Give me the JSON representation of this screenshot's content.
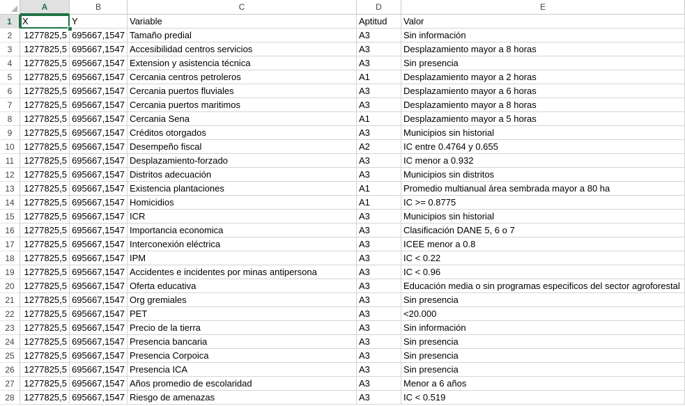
{
  "columns": [
    "A",
    "B",
    "C",
    "D",
    "E"
  ],
  "rows": [
    {
      "n": "1",
      "a": "X",
      "b": "Y",
      "c": "Variable",
      "d": "Aptitud",
      "e": "Valor"
    },
    {
      "n": "2",
      "a": "1277825,5",
      "b": "695667,1547",
      "c": "Tamaño predial",
      "d": "A3",
      "e": "Sin información"
    },
    {
      "n": "3",
      "a": "1277825,5",
      "b": "695667,1547",
      "c": "Accesibilidad centros servicios",
      "d": "A3",
      "e": "Desplazamiento mayor a 8 horas"
    },
    {
      "n": "4",
      "a": "1277825,5",
      "b": "695667,1547",
      "c": "Extension y asistencia técnica",
      "d": "A3",
      "e": "Sin presencia"
    },
    {
      "n": "5",
      "a": "1277825,5",
      "b": "695667,1547",
      "c": "Cercania centros petroleros",
      "d": "A1",
      "e": "Desplazamiento mayor a 2 horas"
    },
    {
      "n": "6",
      "a": "1277825,5",
      "b": "695667,1547",
      "c": "Cercania puertos fluviales",
      "d": "A3",
      "e": "Desplazamiento mayor a 6 horas"
    },
    {
      "n": "7",
      "a": "1277825,5",
      "b": "695667,1547",
      "c": "Cercania puertos maritimos",
      "d": "A3",
      "e": "Desplazamiento mayor a 8 horas"
    },
    {
      "n": "8",
      "a": "1277825,5",
      "b": "695667,1547",
      "c": "Cercania Sena",
      "d": "A1",
      "e": "Desplazamiento mayor a 5 horas"
    },
    {
      "n": "9",
      "a": "1277825,5",
      "b": "695667,1547",
      "c": "Créditos otorgados",
      "d": "A3",
      "e": "Municipios sin historial"
    },
    {
      "n": "10",
      "a": "1277825,5",
      "b": "695667,1547",
      "c": "Desempeño fiscal",
      "d": "A2",
      "e": "IC entre 0.4764 y 0.655"
    },
    {
      "n": "11",
      "a": "1277825,5",
      "b": "695667,1547",
      "c": "Desplazamiento-forzado",
      "d": "A3",
      "e": "IC menor a 0.932"
    },
    {
      "n": "12",
      "a": "1277825,5",
      "b": "695667,1547",
      "c": "Distritos adecuación",
      "d": "A3",
      "e": "Municipios sin distritos"
    },
    {
      "n": "13",
      "a": "1277825,5",
      "b": "695667,1547",
      "c": "Existencia plantaciones",
      "d": "A1",
      "e": "Promedio multianual área sembrada mayor a 80 ha"
    },
    {
      "n": "14",
      "a": "1277825,5",
      "b": "695667,1547",
      "c": "Homicidios",
      "d": "A1",
      "e": "IC >= 0.8775"
    },
    {
      "n": "15",
      "a": "1277825,5",
      "b": "695667,1547",
      "c": "ICR",
      "d": "A3",
      "e": "Municipios sin historial"
    },
    {
      "n": "16",
      "a": "1277825,5",
      "b": "695667,1547",
      "c": "Importancia economica",
      "d": "A3",
      "e": "Clasificación DANE 5, 6 o 7"
    },
    {
      "n": "17",
      "a": "1277825,5",
      "b": "695667,1547",
      "c": "Interconexión eléctrica",
      "d": "A3",
      "e": "ICEE menor a 0.8"
    },
    {
      "n": "18",
      "a": "1277825,5",
      "b": "695667,1547",
      "c": "IPM",
      "d": "A3",
      "e": "IC < 0.22"
    },
    {
      "n": "19",
      "a": "1277825,5",
      "b": "695667,1547",
      "c": "Accidentes e incidentes por minas antipersona",
      "d": "A3",
      "e": "IC < 0.96"
    },
    {
      "n": "20",
      "a": "1277825,5",
      "b": "695667,1547",
      "c": "Oferta educativa",
      "d": "A3",
      "e": "Educación media o sin programas especificos del sector agroforestal"
    },
    {
      "n": "21",
      "a": "1277825,5",
      "b": "695667,1547",
      "c": "Org gremiales",
      "d": "A3",
      "e": "Sin presencia"
    },
    {
      "n": "22",
      "a": "1277825,5",
      "b": "695667,1547",
      "c": "PET",
      "d": "A3",
      "e": "<20.000"
    },
    {
      "n": "23",
      "a": "1277825,5",
      "b": "695667,1547",
      "c": "Precio de la tierra",
      "d": "A3",
      "e": "Sin información"
    },
    {
      "n": "24",
      "a": "1277825,5",
      "b": "695667,1547",
      "c": "Presencia bancaria",
      "d": "A3",
      "e": "Sin presencia"
    },
    {
      "n": "25",
      "a": "1277825,5",
      "b": "695667,1547",
      "c": "Presencia Corpoica",
      "d": "A3",
      "e": "Sin presencia"
    },
    {
      "n": "26",
      "a": "1277825,5",
      "b": "695667,1547",
      "c": "Presencia ICA",
      "d": "A3",
      "e": "Sin presencia"
    },
    {
      "n": "27",
      "a": "1277825,5",
      "b": "695667,1547",
      "c": "Años promedio de escolaridad",
      "d": "A3",
      "e": "Menor a 6 años"
    },
    {
      "n": "28",
      "a": "1277825,5",
      "b": "695667,1547",
      "c": "Riesgo de amenazas",
      "d": "A3",
      "e": "IC < 0.519"
    }
  ]
}
